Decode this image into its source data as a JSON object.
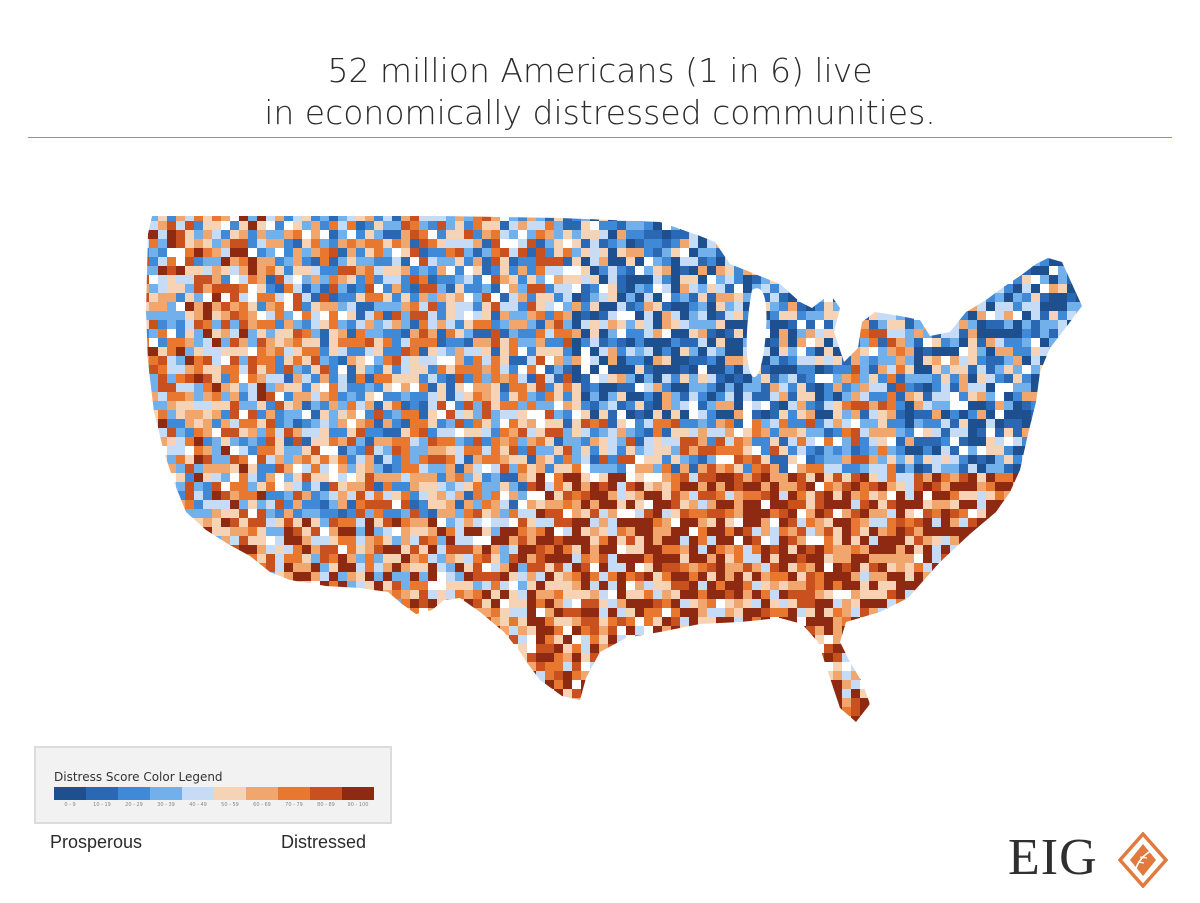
{
  "title": {
    "line1": "52 million Americans (1 in 6) live",
    "line2": "in economically distressed communities."
  },
  "map": {
    "subject": "contiguous United States by distress score",
    "icon": "us-map"
  },
  "legend": {
    "title": "Distress Score Color Legend",
    "bins": [
      {
        "label": "0 - 9",
        "color": "#1e4f8f"
      },
      {
        "label": "10 - 19",
        "color": "#2a68b3"
      },
      {
        "label": "20 - 29",
        "color": "#3f89d6"
      },
      {
        "label": "30 - 39",
        "color": "#72b0ec"
      },
      {
        "label": "40 - 49",
        "color": "#c6dcf6"
      },
      {
        "label": "50 - 59",
        "color": "#f6d3b5"
      },
      {
        "label": "60 - 69",
        "color": "#f0a66c"
      },
      {
        "label": "70 - 79",
        "color": "#e8772f"
      },
      {
        "label": "80 - 89",
        "color": "#c9511f"
      },
      {
        "label": "90 - 100",
        "color": "#8e2a12"
      }
    ],
    "low_label": "Prosperous",
    "high_label": "Distressed"
  },
  "logo": {
    "text": "EIG",
    "accent_color": "#e07a3e",
    "icon": "diamond-leaf-icon"
  },
  "colors": {
    "rule": "#d77a55",
    "text": "#2b2b2b"
  }
}
